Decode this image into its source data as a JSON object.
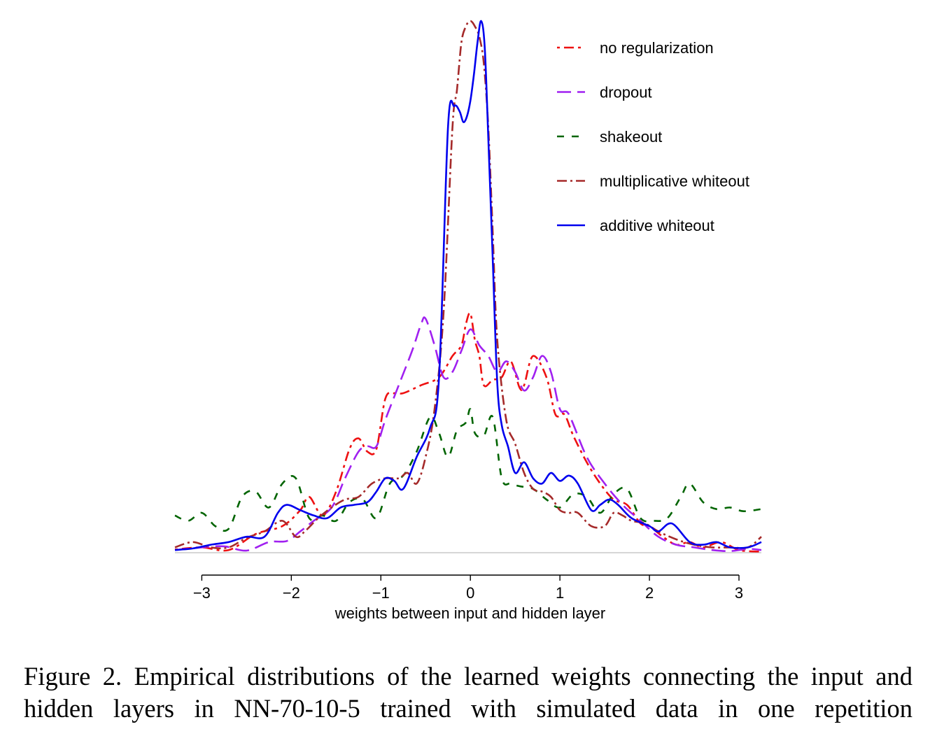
{
  "caption": "Figure 2.  Empirical distributions of the learned weights connecting the input and hidden layers in NN-70-10-5 trained with simulated data in one repetition",
  "chart_data": {
    "type": "line",
    "title": "",
    "xlabel": "weights between input and hidden layer",
    "ylabel": "",
    "xlim": [
      -3.3,
      3.25
    ],
    "ylim": [
      0,
      1.0
    ],
    "xticks": [
      -3,
      -2,
      -1,
      0,
      1,
      2,
      3
    ],
    "xtick_labels": [
      "−3",
      "−2",
      "−1",
      "0",
      "1",
      "2",
      "3"
    ],
    "grid": false,
    "legend_position": "top-right",
    "baseline": 0,
    "series": [
      {
        "name": "no regularization",
        "color": "#ee1111",
        "dash": "4,6,14,6",
        "x": [
          -3.3,
          -3.0,
          -2.7,
          -2.4,
          -2.1,
          -1.9,
          -1.8,
          -1.65,
          -1.5,
          -1.35,
          -1.25,
          -1.15,
          -1.05,
          -0.95,
          -0.85,
          -0.75,
          -0.55,
          -0.35,
          -0.2,
          -0.1,
          -0.05,
          0.0,
          0.05,
          0.1,
          0.15,
          0.25,
          0.35,
          0.45,
          0.55,
          0.6,
          0.7,
          0.85,
          0.95,
          1.05,
          1.15,
          1.3,
          1.45,
          1.6,
          1.75,
          1.9,
          2.0,
          2.15,
          2.3,
          2.45,
          2.6,
          2.8,
          3.0,
          3.25
        ],
        "y": [
          0.006,
          0.01,
          0.005,
          0.035,
          0.05,
          0.08,
          0.105,
          0.07,
          0.115,
          0.195,
          0.215,
          0.19,
          0.195,
          0.29,
          0.3,
          0.3,
          0.315,
          0.33,
          0.37,
          0.39,
          0.43,
          0.45,
          0.4,
          0.37,
          0.315,
          0.325,
          0.33,
          0.36,
          0.31,
          0.315,
          0.37,
          0.33,
          0.26,
          0.26,
          0.22,
          0.17,
          0.13,
          0.1,
          0.09,
          0.055,
          0.05,
          0.03,
          0.015,
          0.02,
          0.01,
          0.02,
          0.005,
          0.002
        ]
      },
      {
        "name": "dropout",
        "color": "#a020f0",
        "dash": "20,9",
        "x": [
          -3.3,
          -3.0,
          -2.75,
          -2.5,
          -2.25,
          -2.05,
          -1.9,
          -1.75,
          -1.55,
          -1.4,
          -1.25,
          -1.15,
          -1.05,
          -0.95,
          -0.8,
          -0.65,
          -0.55,
          -0.5,
          -0.4,
          -0.3,
          -0.2,
          -0.1,
          0.0,
          0.1,
          0.2,
          0.3,
          0.4,
          0.5,
          0.6,
          0.7,
          0.8,
          0.9,
          1.0,
          1.1,
          1.3,
          1.5,
          1.7,
          1.9,
          2.1,
          2.3,
          2.5,
          2.7,
          2.9,
          3.1,
          3.25
        ],
        "y": [
          0.005,
          0.01,
          0.012,
          0.004,
          0.02,
          0.022,
          0.04,
          0.06,
          0.085,
          0.14,
          0.19,
          0.2,
          0.2,
          0.25,
          0.315,
          0.38,
          0.43,
          0.44,
          0.39,
          0.33,
          0.34,
          0.38,
          0.42,
          0.39,
          0.37,
          0.34,
          0.36,
          0.34,
          0.305,
          0.33,
          0.37,
          0.34,
          0.27,
          0.26,
          0.18,
          0.13,
          0.09,
          0.06,
          0.03,
          0.015,
          0.01,
          0.005,
          0.003,
          0.007,
          0.005
        ]
      },
      {
        "name": "shakeout",
        "color": "#006400",
        "dash": "10,11",
        "x": [
          -3.3,
          -3.15,
          -3.0,
          -2.85,
          -2.7,
          -2.55,
          -2.4,
          -2.25,
          -2.1,
          -1.95,
          -1.8,
          -1.65,
          -1.5,
          -1.35,
          -1.2,
          -1.05,
          -0.9,
          -0.75,
          -0.6,
          -0.45,
          -0.35,
          -0.25,
          -0.15,
          -0.05,
          0.0,
          0.05,
          0.15,
          0.25,
          0.35,
          0.45,
          0.55,
          0.7,
          0.85,
          1.0,
          1.15,
          1.3,
          1.45,
          1.6,
          1.75,
          1.9,
          2.05,
          2.2,
          2.35,
          2.45,
          2.6,
          2.75,
          2.9,
          3.05,
          3.25
        ],
        "y": [
          0.07,
          0.06,
          0.075,
          0.05,
          0.045,
          0.105,
          0.115,
          0.085,
          0.13,
          0.14,
          0.065,
          0.07,
          0.06,
          0.095,
          0.1,
          0.065,
          0.13,
          0.145,
          0.19,
          0.255,
          0.225,
          0.18,
          0.23,
          0.245,
          0.27,
          0.225,
          0.22,
          0.255,
          0.14,
          0.13,
          0.125,
          0.12,
          0.1,
          0.085,
          0.11,
          0.105,
          0.075,
          0.11,
          0.12,
          0.065,
          0.06,
          0.065,
          0.105,
          0.13,
          0.095,
          0.082,
          0.085,
          0.078,
          0.082
        ]
      },
      {
        "name": "multiplicative whiteout",
        "color": "#a52a2a",
        "dash": "14,5,3,5",
        "x": [
          -3.3,
          -3.1,
          -2.9,
          -2.7,
          -2.5,
          -2.3,
          -2.1,
          -1.95,
          -1.85,
          -1.7,
          -1.55,
          -1.4,
          -1.25,
          -1.1,
          -0.95,
          -0.8,
          -0.7,
          -0.6,
          -0.5,
          -0.4,
          -0.3,
          -0.2,
          -0.15,
          -0.1,
          -0.05,
          0.0,
          0.05,
          0.1,
          0.15,
          0.2,
          0.25,
          0.3,
          0.4,
          0.5,
          0.6,
          0.7,
          0.8,
          0.9,
          1.0,
          1.1,
          1.2,
          1.35,
          1.5,
          1.6,
          1.7,
          1.8,
          1.95,
          2.1,
          2.3,
          2.5,
          2.7,
          2.9,
          3.1,
          3.25
        ],
        "y": [
          0.01,
          0.02,
          0.01,
          0.01,
          0.028,
          0.04,
          0.06,
          0.03,
          0.04,
          0.065,
          0.085,
          0.1,
          0.105,
          0.13,
          0.14,
          0.14,
          0.15,
          0.13,
          0.18,
          0.27,
          0.45,
          0.8,
          0.87,
          0.96,
          0.99,
          1.0,
          0.99,
          0.97,
          0.92,
          0.8,
          0.6,
          0.4,
          0.25,
          0.205,
          0.15,
          0.12,
          0.115,
          0.105,
          0.08,
          0.075,
          0.075,
          0.05,
          0.05,
          0.075,
          0.07,
          0.06,
          0.055,
          0.04,
          0.025,
          0.015,
          0.01,
          0.01,
          0.01,
          0.03
        ]
      },
      {
        "name": "additive whiteout",
        "color": "#0000ee",
        "dash": "",
        "x": [
          -3.3,
          -3.1,
          -2.9,
          -2.7,
          -2.5,
          -2.3,
          -2.15,
          -2.05,
          -1.9,
          -1.75,
          -1.6,
          -1.45,
          -1.3,
          -1.15,
          -1.05,
          -0.95,
          -0.85,
          -0.75,
          -0.6,
          -0.45,
          -0.35,
          -0.25,
          -0.18,
          -0.12,
          -0.08,
          -0.04,
          0.0,
          0.04,
          0.08,
          0.12,
          0.16,
          0.2,
          0.25,
          0.3,
          0.35,
          0.42,
          0.5,
          0.6,
          0.7,
          0.8,
          0.9,
          1.0,
          1.1,
          1.2,
          1.35,
          1.45,
          1.55,
          1.65,
          1.8,
          2.0,
          2.1,
          2.25,
          2.45,
          2.6,
          2.75,
          2.9,
          3.1,
          3.25
        ],
        "y": [
          0.005,
          0.008,
          0.015,
          0.02,
          0.03,
          0.03,
          0.075,
          0.09,
          0.08,
          0.07,
          0.065,
          0.085,
          0.09,
          0.095,
          0.115,
          0.14,
          0.135,
          0.12,
          0.18,
          0.235,
          0.33,
          0.8,
          0.84,
          0.83,
          0.81,
          0.82,
          0.85,
          0.9,
          0.96,
          1.0,
          0.95,
          0.78,
          0.55,
          0.32,
          0.24,
          0.2,
          0.15,
          0.17,
          0.14,
          0.13,
          0.15,
          0.135,
          0.145,
          0.13,
          0.08,
          0.09,
          0.1,
          0.09,
          0.065,
          0.05,
          0.04,
          0.055,
          0.02,
          0.015,
          0.02,
          0.01,
          0.01,
          0.02
        ]
      }
    ]
  }
}
